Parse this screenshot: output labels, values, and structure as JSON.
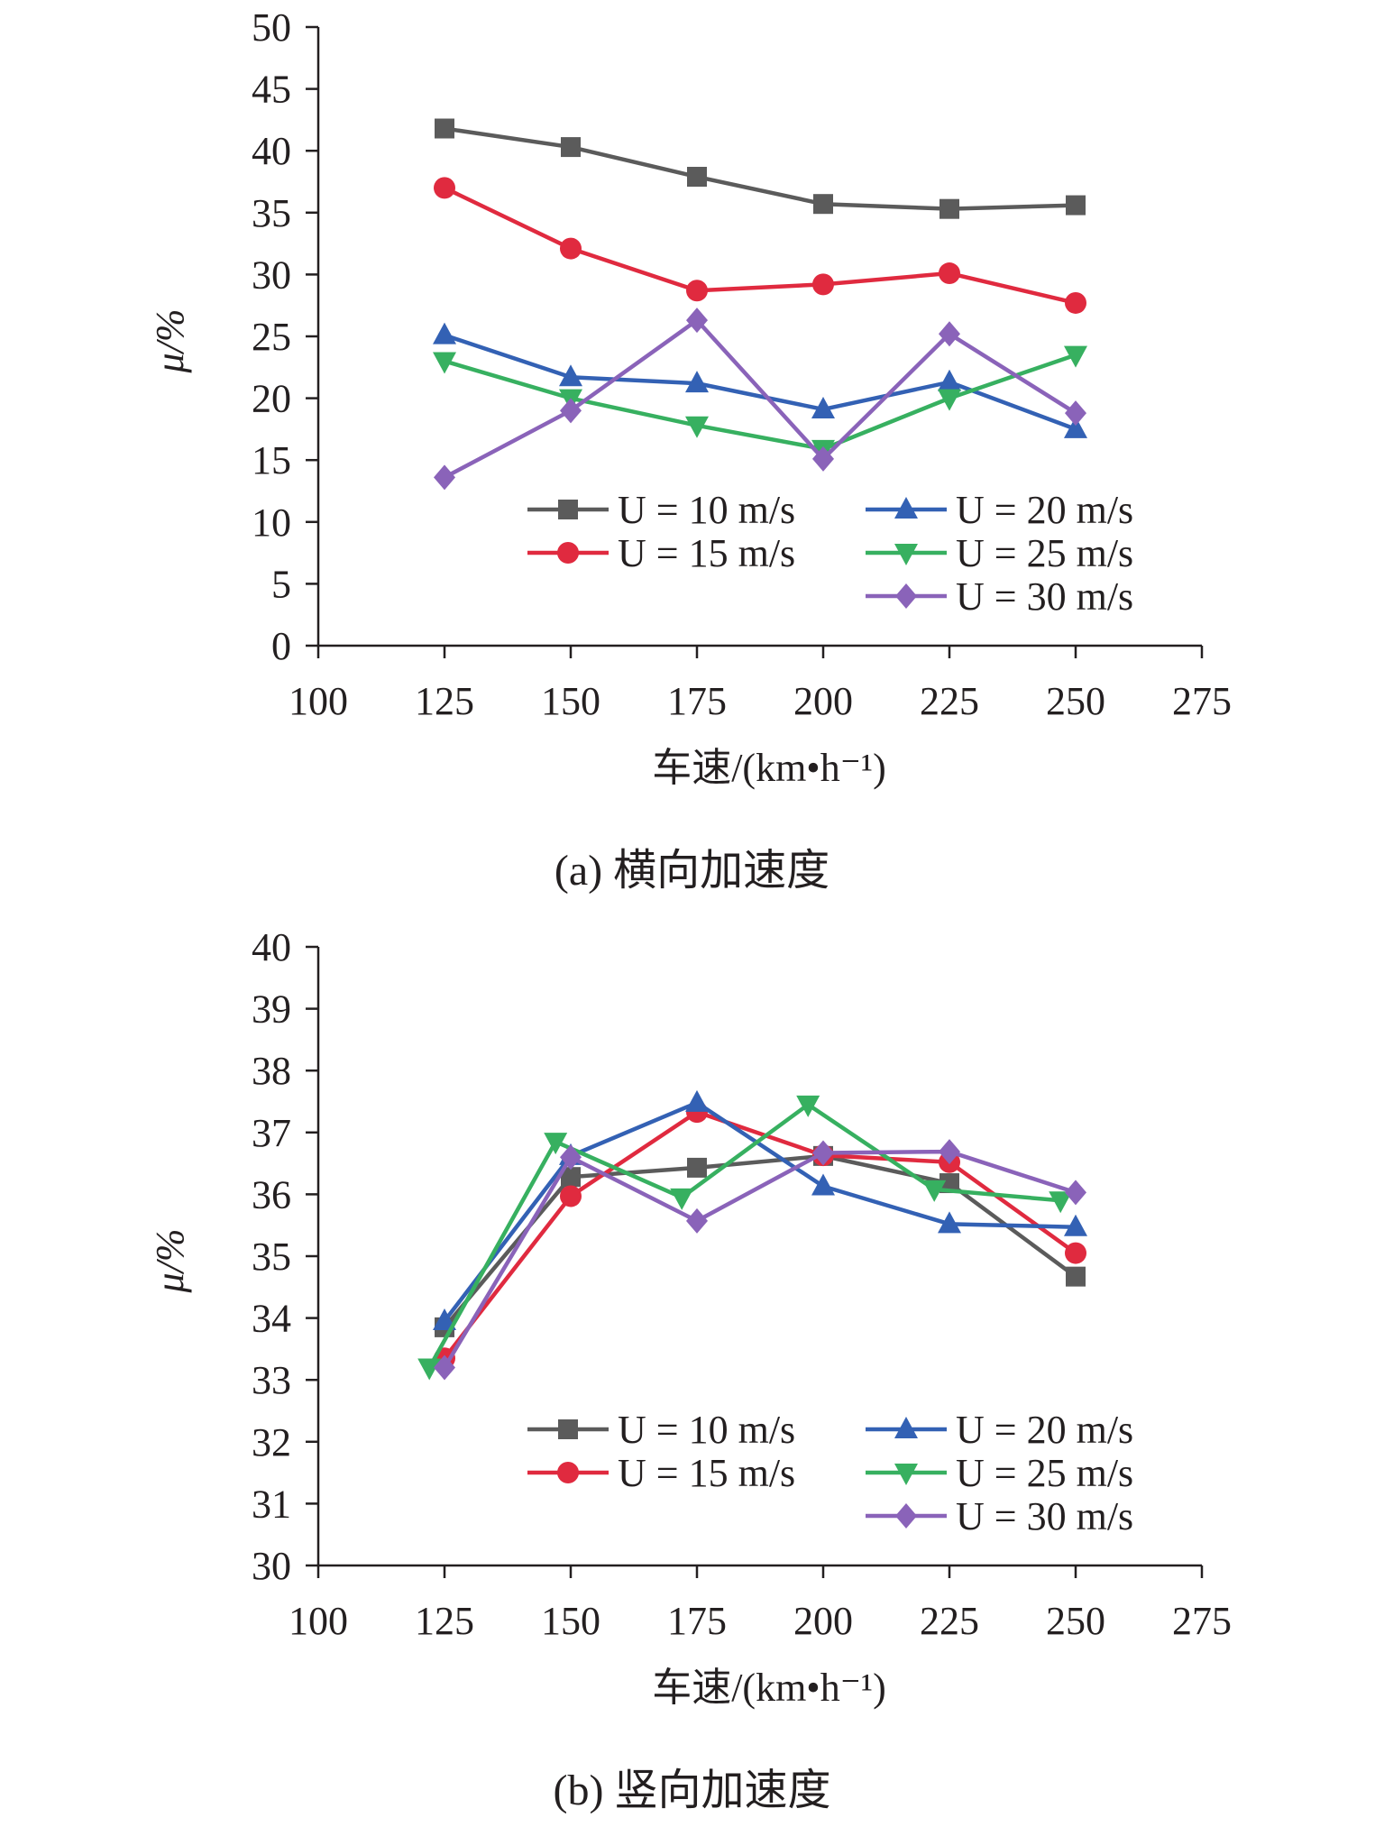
{
  "chart_data": [
    {
      "type": "line",
      "caption": "(a) 横向加速度",
      "xlabel": "车速/(km•h⁻¹)",
      "ylabel": "μ/%",
      "xlim": [
        100,
        275
      ],
      "ylim": [
        0,
        50
      ],
      "x_ticks": [
        100,
        125,
        150,
        175,
        200,
        225,
        250,
        275
      ],
      "y_ticks": [
        0,
        5,
        10,
        15,
        20,
        25,
        30,
        35,
        40,
        45,
        50
      ],
      "legend_position": "bottom-right",
      "series": [
        {
          "name": "U = 10 m/s",
          "color": "#5b5b5b",
          "marker": "square",
          "x": [
            125,
            150,
            175,
            200,
            225,
            250
          ],
          "values": [
            41.8,
            40.3,
            37.9,
            35.7,
            35.3,
            35.6
          ]
        },
        {
          "name": "U = 15 m/s",
          "color": "#e02a3f",
          "marker": "circle",
          "x": [
            125,
            150,
            175,
            200,
            225,
            250
          ],
          "values": [
            37.0,
            32.1,
            28.7,
            29.2,
            30.1,
            27.7
          ]
        },
        {
          "name": "U = 20 m/s",
          "color": "#3361b4",
          "marker": "triangle-up",
          "x": [
            125,
            150,
            175,
            200,
            225,
            250
          ],
          "values": [
            25.1,
            21.7,
            21.2,
            19.1,
            21.3,
            17.5
          ]
        },
        {
          "name": "U = 25 m/s",
          "color": "#37b060",
          "marker": "triangle-down",
          "x": [
            125,
            150,
            175,
            200,
            225,
            250
          ],
          "values": [
            23.0,
            20.0,
            17.8,
            15.9,
            20.0,
            23.5
          ]
        },
        {
          "name": "U = 30 m/s",
          "color": "#8a63b9",
          "marker": "diamond",
          "x": [
            125,
            150,
            175,
            200,
            225,
            250
          ],
          "values": [
            13.6,
            19.0,
            26.3,
            15.1,
            25.2,
            18.8
          ]
        }
      ]
    },
    {
      "type": "line",
      "caption": "(b) 竖向加速度",
      "xlabel": "车速/(km•h⁻¹)",
      "ylabel": "μ/%",
      "xlim": [
        100,
        275
      ],
      "ylim": [
        30,
        40
      ],
      "x_ticks": [
        100,
        125,
        150,
        175,
        200,
        225,
        250,
        275
      ],
      "y_ticks": [
        30,
        31,
        32,
        33,
        34,
        35,
        36,
        37,
        38,
        39,
        40
      ],
      "legend_position": "bottom-right",
      "series": [
        {
          "name": "U = 10 m/s",
          "color": "#5b5b5b",
          "marker": "square",
          "x": [
            125,
            150,
            175,
            200,
            225,
            250
          ],
          "values": [
            33.85,
            36.28,
            36.43,
            36.62,
            36.18,
            34.67
          ]
        },
        {
          "name": "U = 15 m/s",
          "color": "#e02a3f",
          "marker": "circle",
          "x": [
            125,
            150,
            175,
            200,
            225,
            250
          ],
          "values": [
            33.35,
            35.97,
            37.33,
            36.63,
            36.52,
            35.05
          ]
        },
        {
          "name": "U = 20 m/s",
          "color": "#3361b4",
          "marker": "triangle-up",
          "x": [
            125,
            150,
            175,
            200,
            225,
            250
          ],
          "values": [
            33.95,
            36.62,
            37.48,
            36.13,
            35.52,
            35.47
          ]
        },
        {
          "name": "U = 25 m/s",
          "color": "#37b060",
          "marker": "triangle-down",
          "x": [
            122,
            147,
            172,
            197,
            222,
            247
          ],
          "values": [
            33.2,
            36.85,
            35.95,
            37.45,
            36.08,
            35.9
          ]
        },
        {
          "name": "U = 30 m/s",
          "color": "#8a63b9",
          "marker": "diamond",
          "x": [
            125,
            150,
            175,
            200,
            225,
            250
          ],
          "values": [
            33.2,
            36.6,
            35.57,
            36.67,
            36.69,
            36.03
          ]
        }
      ]
    }
  ]
}
